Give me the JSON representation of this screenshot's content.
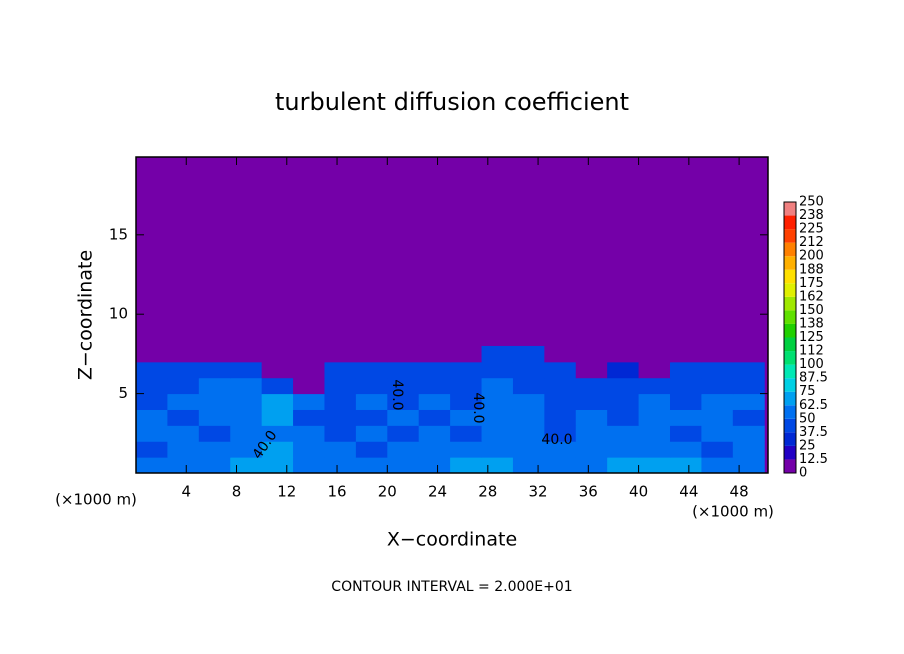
{
  "chart_data": {
    "type": "contour",
    "title": "turbulent diffusion coefficient",
    "x_label": "X−coordinate",
    "y_label": "Z−coordinate",
    "x_unit": "(×1000 m)",
    "y_unit": "(×1000 m)",
    "footnote": "CONTOUR INTERVAL = 2.000E+01",
    "annotations": [
      "40.0",
      "40.0",
      "40.0",
      "40.0"
    ],
    "xlim": [
      0,
      50.3
    ],
    "xticks": [
      4,
      8,
      12,
      16,
      20,
      24,
      28,
      32,
      36,
      40,
      44,
      48
    ],
    "ylim": [
      0,
      19.9
    ],
    "yticks": [
      5,
      10,
      15
    ],
    "x": [
      1.25,
      3.75,
      6.25,
      8.75,
      11.25,
      13.75,
      16.25,
      18.75,
      21.25,
      23.75,
      26.25,
      28.75,
      31.25,
      33.75,
      36.25,
      38.75,
      41.25,
      43.75,
      46.25,
      48.75
    ],
    "z": [
      0.5,
      1.5,
      2.5,
      3.5,
      4.5,
      5.5,
      6.5,
      7.5
    ],
    "values": [
      [
        60,
        55,
        60,
        65,
        70,
        60,
        55,
        50,
        55,
        60,
        65,
        70,
        60,
        55,
        60,
        65,
        70,
        65,
        60,
        55
      ],
      [
        45,
        50,
        55,
        60,
        65,
        55,
        50,
        45,
        50,
        55,
        50,
        55,
        60,
        50,
        55,
        60,
        55,
        50,
        45,
        50
      ],
      [
        55,
        50,
        45,
        50,
        60,
        50,
        45,
        50,
        45,
        50,
        45,
        50,
        55,
        45,
        50,
        55,
        50,
        45,
        50,
        55
      ],
      [
        50,
        45,
        50,
        55,
        70,
        45,
        40,
        45,
        50,
        45,
        50,
        55,
        50,
        45,
        50,
        45,
        50,
        55,
        50,
        45
      ],
      [
        45,
        50,
        55,
        50,
        65,
        50,
        45,
        50,
        45,
        50,
        45,
        60,
        50,
        45,
        40,
        45,
        50,
        45,
        50,
        55
      ],
      [
        45,
        45,
        50,
        55,
        45,
        0,
        40,
        45,
        45,
        40,
        45,
        50,
        45,
        45,
        40,
        40,
        45,
        45,
        40,
        45
      ],
      [
        40,
        40,
        45,
        45,
        0,
        0,
        40,
        40,
        40,
        40,
        45,
        45,
        45,
        40,
        0,
        30,
        0,
        40,
        40,
        40
      ],
      [
        0,
        0,
        0,
        0,
        0,
        0,
        0,
        0,
        0,
        0,
        0,
        40,
        40,
        0,
        0,
        0,
        0,
        0,
        0,
        0
      ]
    ],
    "levels": [
      0,
      12.5,
      25,
      37.5,
      50,
      62.5,
      75,
      87.5,
      100,
      112,
      125,
      138,
      150,
      162,
      175,
      188,
      200,
      212,
      225,
      238,
      250
    ],
    "colors": [
      "#7400a8",
      "#2200c4",
      "#0028d4",
      "#0048e4",
      "#0070f0",
      "#00a0f0",
      "#00d0e4",
      "#00e8b4",
      "#00e070",
      "#00d040",
      "#20d000",
      "#60e000",
      "#a0e800",
      "#e0f000",
      "#ffe000",
      "#ffb000",
      "#ff8000",
      "#ff4000",
      "#ff2000",
      "#f08080"
    ]
  }
}
